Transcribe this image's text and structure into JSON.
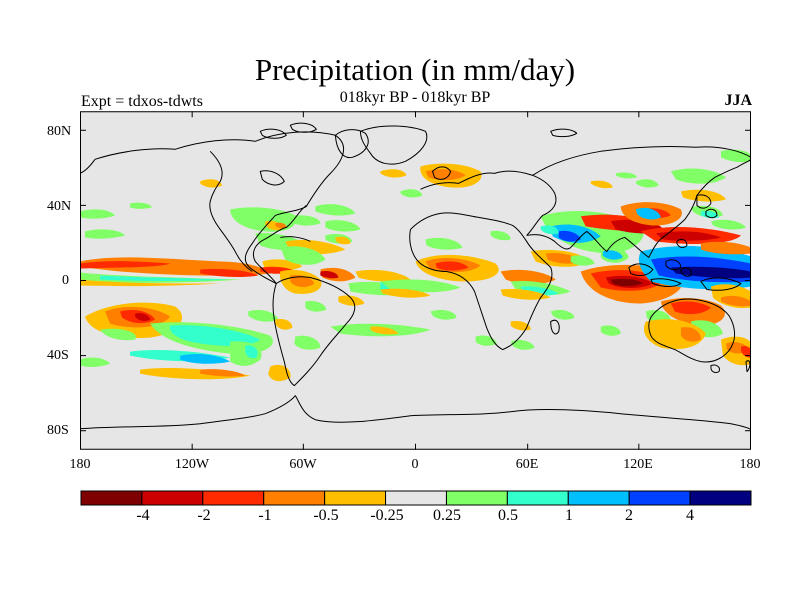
{
  "title": "Precipitation (in mm/day)",
  "subtitle": "018kyr BP - 018kyr BP",
  "left_label": "Expt = tdxos-tdwts",
  "right_label": "JJA",
  "lat_labels": [
    "80N",
    "40N",
    "0",
    "40S",
    "80S"
  ],
  "lon_labels": [
    "180",
    "120W",
    "60W",
    "0",
    "60E",
    "120E",
    "180"
  ],
  "colorbar": {
    "labels": [
      "-4",
      "-2",
      "-1",
      "-0.5",
      "-0.25",
      "0.25",
      "0.5",
      "1",
      "2",
      "4"
    ],
    "colors": [
      "#7f0000",
      "#cc0000",
      "#ff2a00",
      "#ff7f00",
      "#ffbf00",
      "#e6e6e6",
      "#80ff66",
      "#33ffcc",
      "#00bfff",
      "#0040ff",
      "#000080"
    ]
  },
  "map": {
    "ocean_color": "#e6e6e6",
    "coastline_color": "#000000"
  }
}
